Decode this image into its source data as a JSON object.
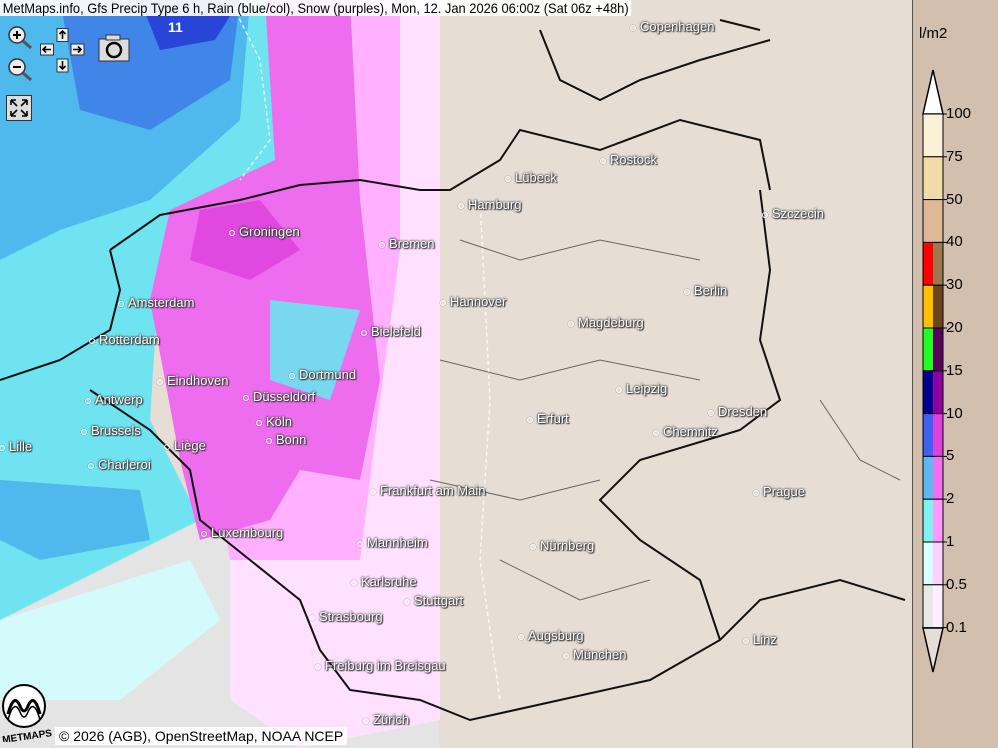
{
  "title": "MetMaps.info, Gfs Precip Type 6 h, Rain (blue/col), Snow (purples), Mon, 12. Jan 2026 06:00z (Sat 06z +48h)",
  "max_value_label": "11",
  "controls": {
    "zoom_in": "zoom-in-icon",
    "zoom_out": "zoom-out-icon",
    "pan": "pan-arrows-icon",
    "screenshot": "camera-icon",
    "fullscreen": "fullscreen-icon"
  },
  "credit": "© 2026 (AGB), OpenStreetMap, NOAA NCEP",
  "logo_text": "METMAPS",
  "cities": [
    "Copenhagen",
    "Rostock",
    "Lübeck",
    "Hamburg",
    "Szczecin",
    "Groningen",
    "Bremen",
    "Berlin",
    "Amsterdam",
    "Hannover",
    "Bielefeld",
    "Magdeburg",
    "Rotterdam",
    "Dortmund",
    "Eindhoven",
    "Leipzig",
    "Düsseldorf",
    "Antwerp",
    "Dresden",
    "Erfurt",
    "Köln",
    "Brussels",
    "Chemnitz",
    "Lille",
    "Liège",
    "Bonn",
    "Charleroi",
    "Frankfurt am Main",
    "Prague",
    "Luxembourg",
    "Mannheim",
    "Nürnberg",
    "Karlsruhe",
    "Stuttgart",
    "Strasbourg",
    "Augsburg",
    "Linz",
    "München",
    "Freiburg im Breisgau",
    "Zürich"
  ],
  "legend": {
    "unit": "l/m2",
    "labels": [
      "100",
      "75",
      "50",
      "40",
      "30",
      "20",
      "15",
      "10",
      "5",
      "2",
      "1",
      "0.5",
      "0.1"
    ],
    "rain_colors": [
      "#fbf0d8",
      "#f0dca8",
      "#dfb896",
      "#ff0000",
      "#ffc000",
      "#20ff20",
      "#000090",
      "#4060f0",
      "#60b8f0",
      "#80f0f0",
      "#d8ffff",
      "#e8e8e8"
    ],
    "snow_colors": [
      "#fbf0d8",
      "#f0dca8",
      "#dfb896",
      "#a07850",
      "#6b4420",
      "#5a0060",
      "#9000a0",
      "#e040e0",
      "#f070f0",
      "#ff99ff",
      "#ffd0ff",
      "#ffeeff"
    ]
  }
}
